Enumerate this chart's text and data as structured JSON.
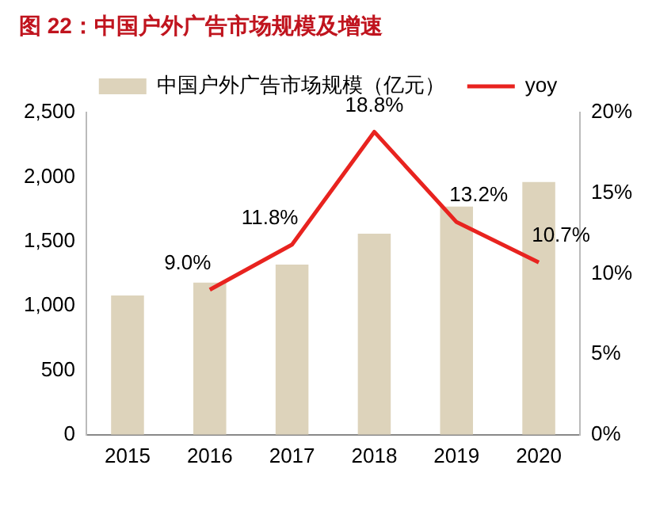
{
  "chart_data": {
    "type": "bar",
    "title": "图 22：中国户外广告市场规模及增速",
    "categories": [
      "2015",
      "2016",
      "2017",
      "2018",
      "2019",
      "2020"
    ],
    "series": [
      {
        "name": "中国户外广告市场规模（亿元）",
        "color": "#ddd3bb",
        "values": [
          1080,
          1180,
          1320,
          1560,
          1770,
          1960
        ]
      },
      {
        "name": "yoy",
        "type": "line",
        "axis": "y2",
        "color": "#e8231f",
        "marker": "none",
        "values": [
          null,
          9.0,
          11.8,
          18.8,
          13.2,
          10.7
        ],
        "value_labels": [
          null,
          "9.0%",
          "11.8%",
          "18.8%",
          "13.2%",
          "10.7%"
        ]
      }
    ],
    "ylim": [
      0,
      2500
    ],
    "yticks": [
      {
        "value": 0,
        "label": "0"
      },
      {
        "value": 500,
        "label": "500"
      },
      {
        "value": 1000,
        "label": "1,000"
      },
      {
        "value": 1500,
        "label": "1,500"
      },
      {
        "value": 2000,
        "label": "2,000"
      },
      {
        "value": 2500,
        "label": "2,500"
      }
    ],
    "y2lim": [
      0,
      20
    ],
    "y2ticks": [
      {
        "value": 0,
        "label": "0%"
      },
      {
        "value": 5,
        "label": "5%"
      },
      {
        "value": 10,
        "label": "10%"
      },
      {
        "value": 15,
        "label": "15%"
      },
      {
        "value": 20,
        "label": "20%"
      }
    ],
    "grid": false,
    "legend": "top"
  }
}
